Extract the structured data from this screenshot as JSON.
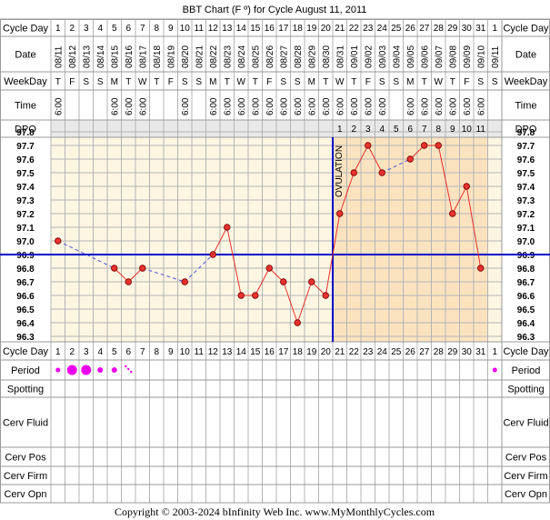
{
  "title": "BBT Chart (F º) for Cycle August 11, 2011",
  "row_labels": {
    "cycle_day": "Cycle Day",
    "date": "Date",
    "weekday": "WeekDay",
    "time": "Time",
    "dpo": "DPO",
    "period": "Period",
    "spotting": "Spotting",
    "cerv_fluid": "Cerv Fluid",
    "cerv_pos": "Cerv Pos",
    "cerv_firm": "Cerv Firm",
    "cerv_opn": "Cerv Opn"
  },
  "ovulation_label": "OVULATION",
  "footer": "Copyright © 2003-2024 bInfinity Web Inc.     www.MyMonthlyCycles.com",
  "colors": {
    "pre_ovulation_bg": "#fdf6e3",
    "post_ovulation_bg": "#fbe3c0",
    "grid": "#b4b4b4",
    "temp_line": "#e8322d",
    "coverline": "#0000cc",
    "ovulation_line": "#0000cc",
    "period_dot": "#ee00ee"
  },
  "chart_data": {
    "type": "line",
    "title": "BBT Chart (F º) for Cycle August 11, 2011",
    "cycle_days": [
      "1",
      "2",
      "3",
      "4",
      "5",
      "6",
      "7",
      "8",
      "9",
      "10",
      "11",
      "12",
      "13",
      "14",
      "15",
      "16",
      "17",
      "18",
      "19",
      "20",
      "21",
      "22",
      "23",
      "24",
      "25",
      "26",
      "27",
      "28",
      "29",
      "30",
      "31",
      "1"
    ],
    "dates": [
      "08/11",
      "08/12",
      "08/13",
      "08/14",
      "08/15",
      "08/16",
      "08/17",
      "08/18",
      "08/19",
      "08/20",
      "08/21",
      "08/22",
      "08/23",
      "08/24",
      "08/25",
      "08/26",
      "08/27",
      "08/28",
      "08/29",
      "08/30",
      "08/31",
      "09/01",
      "09/02",
      "09/03",
      "09/04",
      "09/05",
      "09/06",
      "09/07",
      "09/08",
      "09/09",
      "09/10",
      "09/11"
    ],
    "weekdays": [
      "T",
      "F",
      "S",
      "S",
      "M",
      "T",
      "W",
      "T",
      "F",
      "S",
      "S",
      "M",
      "T",
      "W",
      "T",
      "F",
      "S",
      "S",
      "M",
      "T",
      "W",
      "T",
      "F",
      "S",
      "S",
      "M",
      "T",
      "W",
      "T",
      "F",
      "S",
      "S"
    ],
    "times": [
      "6:00",
      "",
      "",
      "",
      "6:00",
      "6:00",
      "6:00",
      "",
      "",
      "6:00",
      "",
      "6:00",
      "6:00",
      "6:00",
      "6:00",
      "6:00",
      "6:00",
      "6:00",
      "6:00",
      "6:00",
      "6:00",
      "6:00",
      "6:00",
      "6:00",
      "",
      "6:00",
      "6:00",
      "6:00",
      "6:00",
      "6:00",
      "6:00",
      ""
    ],
    "dpo": [
      "",
      "",
      "",
      "",
      "",
      "",
      "",
      "",
      "",
      "",
      "",
      "",
      "",
      "",
      "",
      "",
      "",
      "",
      "",
      "",
      "1",
      "2",
      "3",
      "4",
      "5",
      "6",
      "7",
      "8",
      "9",
      "10",
      "11",
      ""
    ],
    "temperatures": [
      97.0,
      null,
      null,
      null,
      96.8,
      96.7,
      96.8,
      null,
      null,
      96.7,
      null,
      96.9,
      97.1,
      96.6,
      96.6,
      96.8,
      96.7,
      96.4,
      96.7,
      96.6,
      97.2,
      97.5,
      97.7,
      97.5,
      null,
      97.6,
      97.7,
      97.7,
      97.2,
      97.4,
      96.8,
      null
    ],
    "period": [
      "light",
      "heavy",
      "heavy",
      "medium",
      "medium",
      "spotting",
      "",
      "",
      "",
      "",
      "",
      "",
      "",
      "",
      "",
      "",
      "",
      "",
      "",
      "",
      "",
      "",
      "",
      "",
      "",
      "",
      "",
      "",
      "",
      "",
      "",
      "light"
    ],
    "y_ticks": [
      "97.8",
      "97.7",
      "97.6",
      "97.5",
      "97.4",
      "97.3",
      "97.2",
      "97.1",
      "97.0",
      "96.9",
      "96.8",
      "96.7",
      "96.6",
      "96.5",
      "96.4",
      "96.3"
    ],
    "ylim": [
      96.3,
      97.8
    ],
    "coverline": 96.9,
    "ovulation_day": 20
  }
}
